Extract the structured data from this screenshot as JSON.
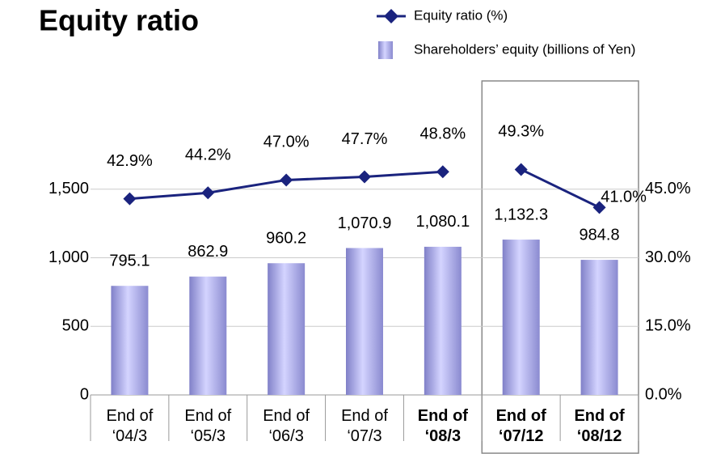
{
  "chart_data": {
    "type": "bar-line",
    "title": "Equity ratio",
    "categories": [
      "End of ‘04/3",
      "End of ‘05/3",
      "End of ‘06/3",
      "End of ‘07/3",
      "End of ‘08/3",
      "End of ‘07/12",
      "End of ‘08/12"
    ],
    "bold_categories": [
      false,
      false,
      false,
      false,
      true,
      true,
      true
    ],
    "boxed_categories": [
      5,
      6
    ],
    "series": [
      {
        "name": "Shareholders’ equity (billions of Yen)",
        "type": "bar",
        "color": "#9999dd",
        "values": [
          795.1,
          862.9,
          960.2,
          1070.9,
          1080.1,
          1132.3,
          984.8
        ],
        "value_labels": [
          "795.1",
          "862.9",
          "960.2",
          "1,070.9",
          "1,080.1",
          "1,132.3",
          "984.8"
        ]
      },
      {
        "name": "Equity ratio (%)",
        "type": "line",
        "axis": "y2",
        "color": "#1a237e",
        "values": [
          42.9,
          44.2,
          47.0,
          47.7,
          48.8,
          49.3,
          41.0
        ],
        "value_labels": [
          "42.9%",
          "44.2%",
          "47.0%",
          "47.7%",
          "48.8%",
          "49.3%",
          "41.0%"
        ]
      }
    ],
    "ylim": [
      0,
      2000
    ],
    "yticks": [
      0,
      500,
      {
        "value": 1000,
        "label": "1,000"
      },
      {
        "value": 1500,
        "label": "1,500"
      }
    ],
    "y2lim": [
      0,
      60
    ],
    "y2ticks": [
      {
        "value": 0,
        "label": "0.0%"
      },
      {
        "value": 15,
        "label": "15.0%"
      },
      {
        "value": 30,
        "label": "30.0%"
      },
      {
        "value": 45,
        "label": "45.0%"
      }
    ],
    "grid": true
  }
}
